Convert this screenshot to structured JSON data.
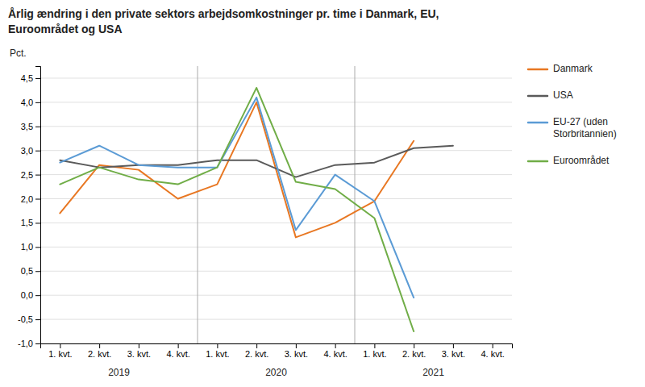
{
  "chart_data": {
    "type": "line",
    "title": "Årlig ændring i den private sektors arbejdsomkostninger pr. time i Danmark, EU,\nEuroområdet og USA",
    "ylabel": "Pct.",
    "categories": [
      "1. kvt.",
      "2. kvt.",
      "3. kvt.",
      "4. kvt.",
      "1. kvt.",
      "2. kvt.",
      "3. kvt.",
      "4. kvt.",
      "1. kvt.",
      "2. kvt.",
      "3. kvt.",
      "4. kvt."
    ],
    "annotations": [
      {
        "text": "2019",
        "x": 1.5
      },
      {
        "text": "2020",
        "x": 5.5
      },
      {
        "text": "2021",
        "x": 9.5
      }
    ],
    "series": [
      {
        "name": "Danmark",
        "color": "#E87722",
        "values": [
          1.7,
          2.7,
          2.6,
          2.0,
          2.3,
          4.0,
          1.2,
          1.5,
          1.95,
          3.2,
          null,
          null
        ]
      },
      {
        "name": "USA",
        "color": "#5A5A5A",
        "values": [
          2.8,
          2.65,
          2.7,
          2.7,
          2.8,
          2.8,
          2.45,
          2.7,
          2.75,
          3.05,
          3.1,
          null
        ]
      },
      {
        "name": "EU-27 (uden\nStorbritannien)",
        "color": "#5B9BD5",
        "values": [
          2.75,
          3.1,
          2.7,
          2.65,
          2.65,
          4.1,
          1.35,
          2.5,
          1.95,
          -0.05,
          null,
          null
        ]
      },
      {
        "name": "Euroområdet",
        "color": "#70AD47",
        "values": [
          2.3,
          2.65,
          2.4,
          2.3,
          2.65,
          4.3,
          2.35,
          2.2,
          1.6,
          -0.75,
          null,
          null
        ]
      }
    ],
    "ylim": [
      -1.0,
      4.75
    ],
    "yticks": [
      {
        "value": -1.0,
        "label": "-1,0"
      },
      {
        "value": -0.5,
        "label": "-0,5"
      },
      {
        "value": 0.0,
        "label": "0,0"
      },
      {
        "value": 0.5,
        "label": "0,5"
      },
      {
        "value": 1.0,
        "label": "1,0"
      },
      {
        "value": 1.5,
        "label": "1,5"
      },
      {
        "value": 2.0,
        "label": "2,0"
      },
      {
        "value": 2.5,
        "label": "2,5"
      },
      {
        "value": 3.0,
        "label": "3,0"
      },
      {
        "value": 3.5,
        "label": "3,5"
      },
      {
        "value": 4.0,
        "label": "4,0"
      },
      {
        "value": 4.5,
        "label": "4,5"
      }
    ],
    "grid": true,
    "legend": "right"
  }
}
